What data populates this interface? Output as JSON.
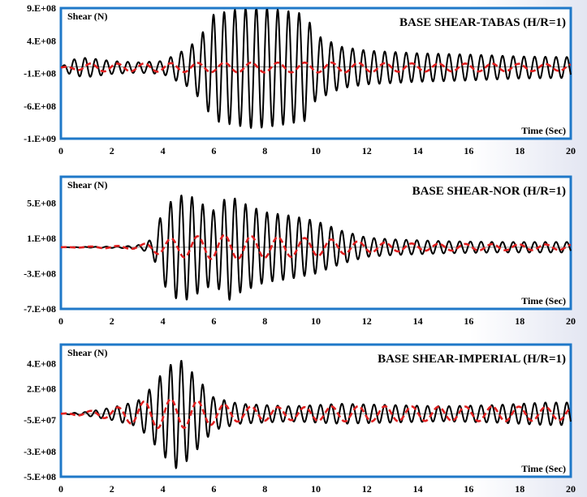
{
  "chart_data": [
    {
      "type": "line",
      "title": "BASE SHEAR-TABAS (H/R=1)",
      "ylabel": "Shear (N)",
      "xlabel": "Time (Sec)",
      "xlim": [
        0,
        20
      ],
      "ylim": [
        -1100000000,
        900000000
      ],
      "x_ticks": [
        0,
        2,
        4,
        6,
        8,
        10,
        12,
        14,
        16,
        18,
        20
      ],
      "y_ticks": [
        {
          "value": 900000000,
          "label": "9.E+08"
        },
        {
          "value": 400000000,
          "label": "4.E+08"
        },
        {
          "value": -100000000,
          "label": "-1.E+08"
        },
        {
          "value": -600000000,
          "label": "-6.E+08"
        },
        {
          "value": -1100000000,
          "label": "-1.E+09"
        }
      ],
      "series": [
        {
          "color": "#000000",
          "style": "solid",
          "period": 0.42,
          "offset": -10000000,
          "envelope": [
            [
              0,
              0
            ],
            [
              0.4,
              120000000
            ],
            [
              1,
              150000000
            ],
            [
              2,
              100000000
            ],
            [
              3,
              80000000
            ],
            [
              4,
              100000000
            ],
            [
              5,
              300000000
            ],
            [
              5.5,
              500000000
            ],
            [
              6,
              820000000
            ],
            [
              7,
              900000000
            ],
            [
              7.5,
              930000000
            ],
            [
              8,
              920000000
            ],
            [
              9,
              860000000
            ],
            [
              9.6,
              820000000
            ],
            [
              10,
              500000000
            ],
            [
              11,
              320000000
            ],
            [
              12,
              260000000
            ],
            [
              14,
              220000000
            ],
            [
              16,
              200000000
            ],
            [
              18,
              170000000
            ],
            [
              20,
              160000000
            ]
          ]
        },
        {
          "color": "#e02020",
          "style": "dashed",
          "period": 1.05,
          "offset": -10000000,
          "envelope": [
            [
              0,
              0
            ],
            [
              1,
              60000000
            ],
            [
              3,
              60000000
            ],
            [
              5,
              70000000
            ],
            [
              7,
              75000000
            ],
            [
              9,
              75000000
            ],
            [
              11,
              75000000
            ],
            [
              13,
              65000000
            ],
            [
              15,
              60000000
            ],
            [
              17,
              60000000
            ],
            [
              20,
              50000000
            ]
          ]
        }
      ]
    },
    {
      "type": "line",
      "title": "BASE SHEAR-NOR (H/R=1)",
      "ylabel": "Shear (N)",
      "xlabel": "Time (Sec)",
      "xlim": [
        0,
        20
      ],
      "ylim": [
        -700000000,
        800000000
      ],
      "x_ticks": [
        0,
        2,
        4,
        6,
        8,
        10,
        12,
        14,
        16,
        18,
        20
      ],
      "y_ticks": [
        {
          "value": 500000000,
          "label": "5.E+08"
        },
        {
          "value": 100000000,
          "label": "1.E+08"
        },
        {
          "value": -300000000,
          "label": "-3.E+08"
        },
        {
          "value": -700000000,
          "label": "-7.E+08"
        }
      ],
      "series": [
        {
          "color": "#000000",
          "style": "solid",
          "period": 0.42,
          "offset": 0,
          "envelope": [
            [
              0,
              0
            ],
            [
              2.5,
              10000000
            ],
            [
              3.2,
              30000000
            ],
            [
              3.6,
              100000000
            ],
            [
              4,
              420000000
            ],
            [
              4.5,
              580000000
            ],
            [
              5,
              600000000
            ],
            [
              5.5,
              500000000
            ],
            [
              6,
              420000000
            ],
            [
              6.6,
              600000000
            ],
            [
              7,
              520000000
            ],
            [
              8,
              400000000
            ],
            [
              9,
              360000000
            ],
            [
              10,
              300000000
            ],
            [
              11,
              190000000
            ],
            [
              12,
              110000000
            ],
            [
              13,
              90000000
            ],
            [
              15,
              70000000
            ],
            [
              17,
              60000000
            ],
            [
              20,
              60000000
            ]
          ]
        },
        {
          "color": "#e02020",
          "style": "dashed",
          "period": 1.05,
          "offset": 0,
          "envelope": [
            [
              0,
              0
            ],
            [
              3,
              20000000
            ],
            [
              4,
              90000000
            ],
            [
              5,
              120000000
            ],
            [
              6.5,
              140000000
            ],
            [
              8,
              120000000
            ],
            [
              10,
              100000000
            ],
            [
              12,
              60000000
            ],
            [
              14,
              40000000
            ],
            [
              17,
              35000000
            ],
            [
              20,
              30000000
            ]
          ]
        }
      ]
    },
    {
      "type": "line",
      "title": "BASE SHEAR-IMPERIAL (H/R=1)",
      "ylabel": "Shear (N)",
      "xlabel": "Time (Sec)",
      "xlim": [
        0,
        20
      ],
      "ylim": [
        -500000000,
        550000000
      ],
      "x_ticks": [
        0,
        2,
        4,
        6,
        8,
        10,
        12,
        14,
        16,
        18,
        20
      ],
      "y_ticks": [
        {
          "value": 400000000,
          "label": "4.E+08"
        },
        {
          "value": 200000000,
          "label": "2.E+08"
        },
        {
          "value": -50000000,
          "label": "-5.E+07"
        },
        {
          "value": -300000000,
          "label": "-3.E+08"
        },
        {
          "value": -500000000,
          "label": "-5.E+08"
        }
      ],
      "series": [
        {
          "color": "#000000",
          "style": "solid",
          "period": 0.42,
          "offset": 0,
          "envelope": [
            [
              0,
              0
            ],
            [
              1,
              15000000
            ],
            [
              2,
              50000000
            ],
            [
              3,
              100000000
            ],
            [
              3.5,
              200000000
            ],
            [
              4,
              330000000
            ],
            [
              4.6,
              450000000
            ],
            [
              5.2,
              320000000
            ],
            [
              6,
              130000000
            ],
            [
              7,
              80000000
            ],
            [
              9,
              60000000
            ],
            [
              11,
              80000000
            ],
            [
              13,
              70000000
            ],
            [
              15,
              60000000
            ],
            [
              17,
              70000000
            ],
            [
              19,
              90000000
            ],
            [
              20,
              90000000
            ]
          ]
        },
        {
          "color": "#e02020",
          "style": "dashed",
          "period": 1.05,
          "offset": 0,
          "envelope": [
            [
              0,
              0
            ],
            [
              2,
              40000000
            ],
            [
              3,
              90000000
            ],
            [
              4,
              120000000
            ],
            [
              5,
              110000000
            ],
            [
              7,
              60000000
            ],
            [
              9,
              50000000
            ],
            [
              11,
              60000000
            ],
            [
              13,
              60000000
            ],
            [
              15,
              55000000
            ],
            [
              17,
              60000000
            ],
            [
              20,
              50000000
            ]
          ]
        }
      ]
    }
  ]
}
